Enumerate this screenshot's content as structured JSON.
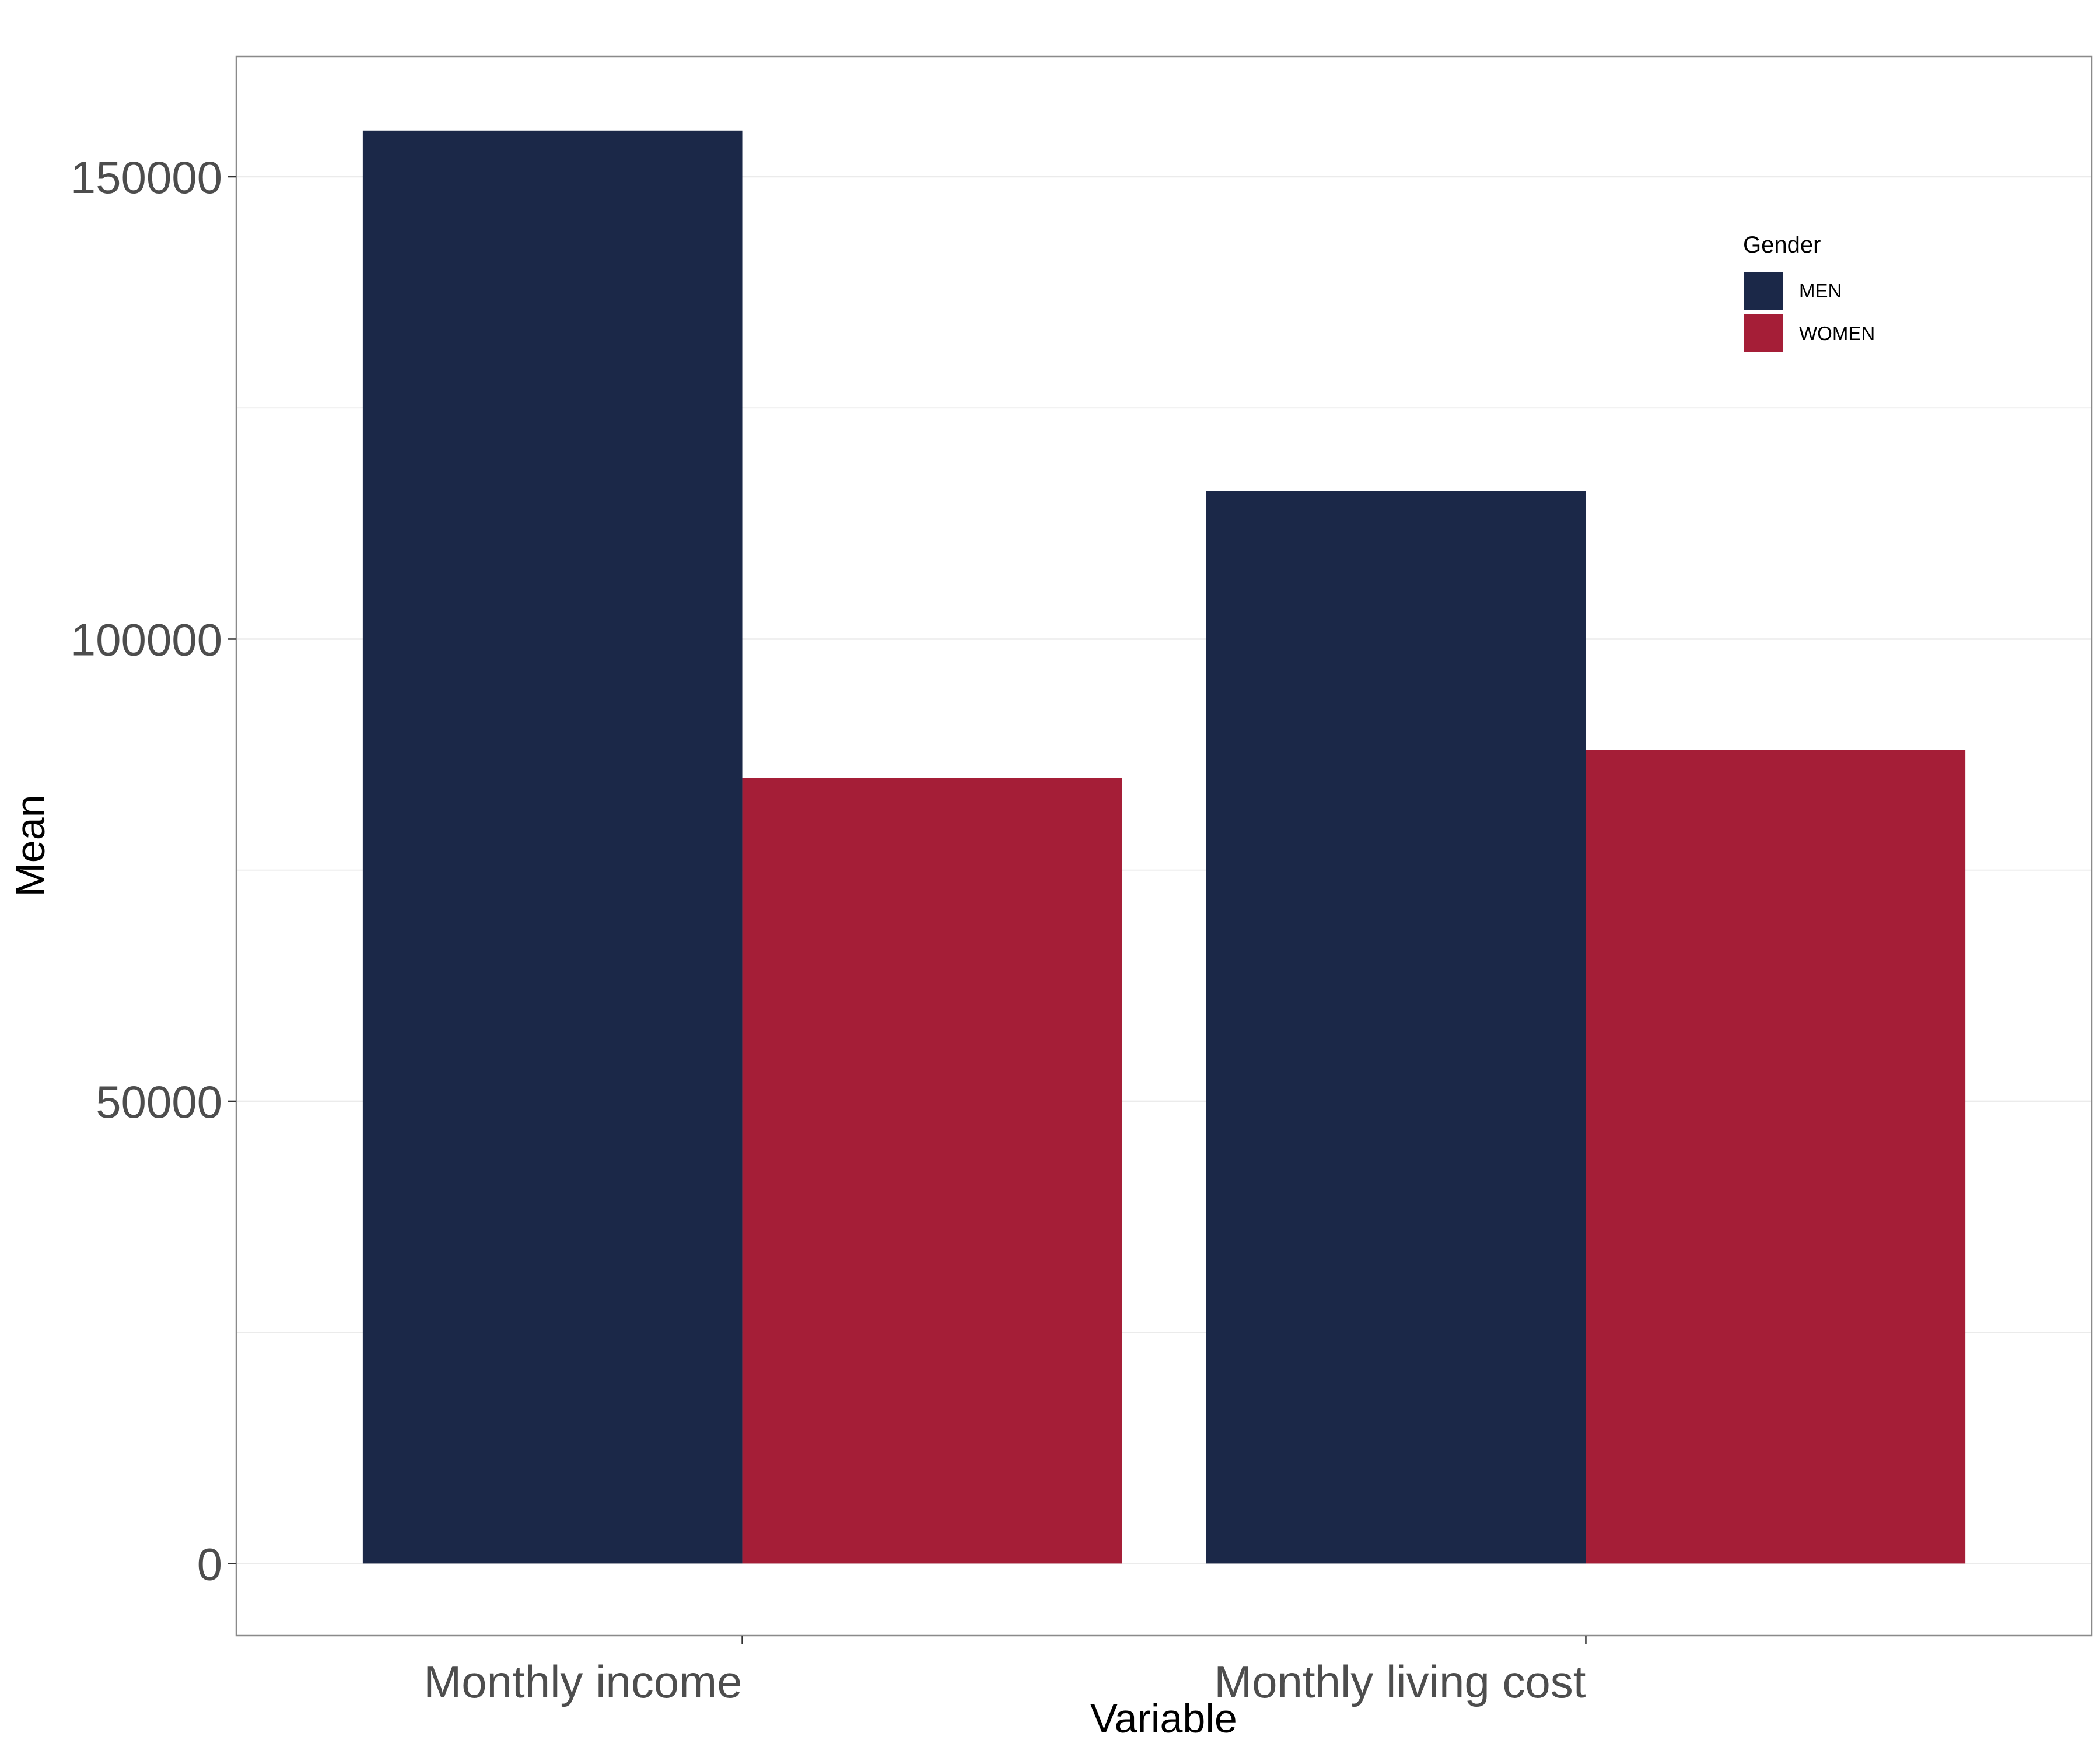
{
  "chart_data": {
    "type": "bar",
    "categories": [
      "Monthly income",
      "Monthly living cost"
    ],
    "series": [
      {
        "name": "MEN",
        "values": [
          155000,
          116000
        ],
        "color": "#1b2848"
      },
      {
        "name": "WOMEN",
        "values": [
          85000,
          88000
        ],
        "color": "#a51e37"
      }
    ],
    "xlabel": "Variable",
    "ylabel": "Mean",
    "yticks": [
      0,
      50000,
      100000,
      150000
    ],
    "ylim": [
      -7800,
      163000
    ],
    "grid": true,
    "legend": {
      "title": "Gender",
      "position": "top-right"
    }
  }
}
